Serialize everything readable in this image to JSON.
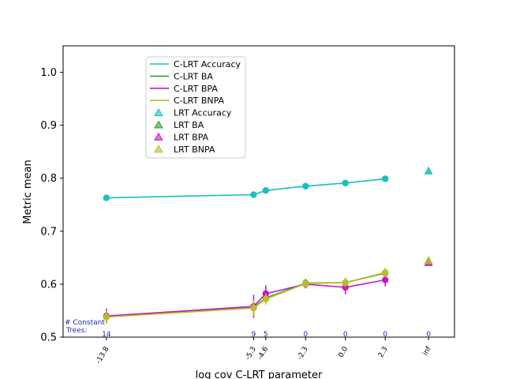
{
  "chart_data": {
    "type": "line",
    "title": "",
    "xlabel": "log cov C-LRT parameter",
    "ylabel": "Metric mean",
    "ylim": [
      0.5,
      1.05
    ],
    "yticks": [
      "0.5",
      "0.6",
      "0.7",
      "0.8",
      "0.9",
      "1.0"
    ],
    "ytick_values": [
      0.5,
      0.6,
      0.7,
      0.8,
      0.9,
      1.0
    ],
    "xtick_labels": [
      "-13.8",
      "-5.3",
      "-4.6",
      "-2.3",
      "0.0",
      "2.3",
      "inf"
    ],
    "x": [
      -13.8,
      -5.3,
      -4.6,
      -2.3,
      0.0,
      2.3
    ],
    "inf_label": "inf",
    "constant_trees_label_line1": "# Constant",
    "constant_trees_label_line2": "Trees:",
    "constant_trees_counts": [
      "14",
      "9",
      "5",
      "0",
      "0",
      "0",
      "0"
    ],
    "series": [
      {
        "name": "C-LRT Accuracy",
        "color": "#17bfbf",
        "values": [
          0.763,
          0.769,
          0.777,
          0.785,
          0.791,
          0.799
        ],
        "errors": [
          0.002,
          0.002,
          0.002,
          0.002,
          0.002,
          0.002
        ]
      },
      {
        "name": "C-LRT BA",
        "color": "#2ca02c",
        "values": [
          0.539,
          0.556,
          0.574,
          0.602,
          0.603,
          0.621
        ],
        "errors": [
          0.012,
          0.018,
          0.012,
          0.008,
          0.009,
          0.009
        ]
      },
      {
        "name": "C-LRT BPA",
        "color": "#c51ac5",
        "values": [
          0.54,
          0.558,
          0.582,
          0.6,
          0.594,
          0.608
        ],
        "errors": [
          0.014,
          0.022,
          0.016,
          0.008,
          0.013,
          0.012
        ]
      },
      {
        "name": "C-LRT BNPA",
        "color": "#bcbd22",
        "values": [
          0.538,
          0.555,
          0.572,
          0.601,
          0.603,
          0.622
        ],
        "errors": [
          0.012,
          0.016,
          0.01,
          0.007,
          0.008,
          0.008
        ]
      }
    ],
    "lrt_points": [
      {
        "name": "LRT Accuracy",
        "color": "#17bfbf",
        "value": 0.814
      },
      {
        "name": "LRT BA",
        "color": "#2ca02c",
        "value": 0.644
      },
      {
        "name": "LRT BPA",
        "color": "#c51ac5",
        "value": 0.641
      },
      {
        "name": "LRT BNPA",
        "color": "#bcbd22",
        "value": 0.645
      }
    ],
    "legend_location": "upper-left"
  }
}
